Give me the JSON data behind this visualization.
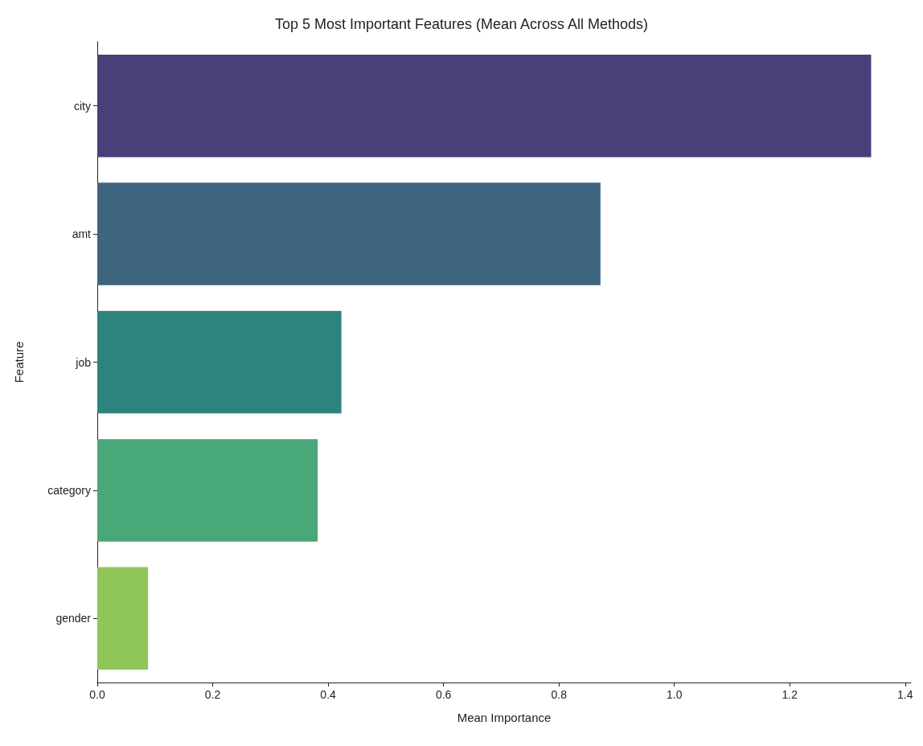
{
  "chart_data": {
    "type": "bar",
    "orientation": "horizontal",
    "title": "Top 5 Most Important Features (Mean Across All Methods)",
    "xlabel": "Mean Importance",
    "ylabel": "Feature",
    "categories": [
      "city",
      "amt",
      "job",
      "category",
      "gender"
    ],
    "values": [
      1.341,
      0.872,
      0.423,
      0.382,
      0.088
    ],
    "colors": [
      "#4a3f78",
      "#3e6580",
      "#2e837c",
      "#48a878",
      "#90c55a"
    ],
    "xlim": [
      0,
      1.41
    ],
    "xticks": [
      {
        "value": 0,
        "label": "0.0"
      },
      0.2,
      0.4,
      0.6,
      0.8,
      {
        "value": 1,
        "label": "1.0"
      },
      1.2,
      1.4
    ],
    "grid": false
  }
}
